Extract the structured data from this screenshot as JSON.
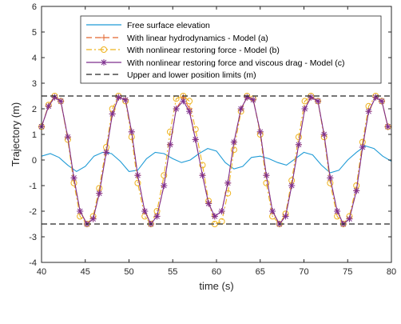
{
  "chart_data": {
    "type": "line",
    "title": "",
    "xlabel": "time (s)",
    "ylabel": "Trajectory (m)",
    "xlim": [
      40,
      80
    ],
    "ylim": [
      -4,
      6
    ],
    "xticks": [
      40,
      45,
      50,
      55,
      60,
      65,
      70,
      75,
      80
    ],
    "yticks": [
      -4,
      -3,
      -2,
      -1,
      0,
      1,
      2,
      3,
      4,
      5,
      6
    ],
    "grid": false,
    "legend_position": "top",
    "series": [
      {
        "name": "Free surface elevation",
        "style": "solid",
        "marker": "none",
        "color": "#1f9bd6",
        "x": [
          40,
          41,
          42,
          43,
          44,
          45,
          46,
          47,
          48,
          49,
          50,
          51,
          52,
          53,
          54,
          55,
          56,
          57,
          58,
          59,
          60,
          61,
          62,
          63,
          64,
          65,
          66,
          67,
          68,
          69,
          70,
          71,
          72,
          73,
          74,
          75,
          76,
          77,
          78,
          79,
          80
        ],
        "y": [
          0.15,
          0.25,
          0.1,
          -0.2,
          -0.45,
          -0.25,
          0.15,
          0.3,
          0.25,
          -0.05,
          -0.45,
          -0.4,
          0.05,
          0.3,
          0.25,
          0.05,
          -0.1,
          0.0,
          0.25,
          0.45,
          0.35,
          -0.1,
          -0.35,
          -0.25,
          0.1,
          0.15,
          0.05,
          -0.1,
          -0.2,
          0.05,
          0.3,
          0.2,
          -0.2,
          -0.5,
          -0.4,
          0.0,
          0.3,
          0.55,
          0.45,
          0.15,
          -0.05
        ]
      },
      {
        "name": "With linear hydrodynamics - Model (a)",
        "style": "dashed",
        "marker": "plus",
        "color": "#e3662e",
        "x": [
          40,
          40.8,
          41.5,
          42.2,
          43,
          43.7,
          44.4,
          45.2,
          45.9,
          46.6,
          47.4,
          48.1,
          48.8,
          49.6,
          50.3,
          51,
          51.8,
          52.5,
          53.2,
          54,
          54.7,
          55.4,
          56.2,
          56.9,
          57.6,
          58.4,
          59.1,
          59.8,
          60.6,
          61.3,
          62,
          62.8,
          63.5,
          64.2,
          65,
          65.7,
          66.4,
          67.2,
          67.9,
          68.6,
          69.4,
          70.1,
          70.8,
          71.6,
          72.3,
          73,
          73.8,
          74.5,
          75.2,
          76,
          76.7,
          77.4,
          78.2,
          78.9,
          79.6
        ],
        "y": [
          1.3,
          2.1,
          2.45,
          2.3,
          0.9,
          -0.7,
          -2.0,
          -2.5,
          -2.3,
          -1.3,
          0.3,
          1.8,
          2.45,
          2.35,
          1.1,
          -0.6,
          -2.0,
          -2.5,
          -2.2,
          -1.0,
          0.6,
          2.0,
          2.45,
          2.0,
          0.8,
          -0.6,
          -1.7,
          -2.2,
          -2.0,
          -0.9,
          0.7,
          2.0,
          2.45,
          2.35,
          1.1,
          -0.6,
          -2.0,
          -2.5,
          -2.2,
          -1.0,
          0.6,
          2.0,
          2.45,
          2.3,
          1.0,
          -0.7,
          -2.0,
          -2.5,
          -2.3,
          -1.2,
          0.5,
          1.9,
          2.45,
          2.3,
          1.3
        ]
      },
      {
        "name": "With nonlinear restoring force - Model (b)",
        "style": "dashdot",
        "marker": "circle",
        "color": "#eeb31f",
        "x": [
          40,
          40.8,
          41.5,
          42.2,
          43,
          43.7,
          44.4,
          45.2,
          45.9,
          46.6,
          47.4,
          48.1,
          48.8,
          49.6,
          50.3,
          51,
          51.8,
          52.5,
          53.2,
          54,
          54.7,
          55.4,
          56.2,
          56.9,
          57.6,
          58.4,
          59.1,
          59.8,
          60.6,
          61.3,
          62,
          62.8,
          63.5,
          64.2,
          65,
          65.7,
          66.4,
          67.2,
          67.9,
          68.6,
          69.4,
          70.1,
          70.8,
          71.6,
          72.3,
          73,
          73.8,
          74.5,
          75.2,
          76,
          76.7,
          77.4,
          78.2,
          78.9,
          79.6
        ],
        "y": [
          1.3,
          2.15,
          2.5,
          2.3,
          0.8,
          -0.9,
          -2.2,
          -2.5,
          -2.2,
          -1.1,
          0.5,
          2.0,
          2.5,
          2.3,
          0.9,
          -0.9,
          -2.2,
          -2.5,
          -2.0,
          -0.6,
          1.1,
          2.4,
          2.5,
          2.3,
          1.2,
          -0.2,
          -1.6,
          -2.5,
          -2.4,
          -1.3,
          0.4,
          1.9,
          2.5,
          2.4,
          1.0,
          -0.9,
          -2.2,
          -2.5,
          -2.1,
          -0.8,
          0.9,
          2.3,
          2.5,
          2.3,
          0.9,
          -0.9,
          -2.2,
          -2.5,
          -2.2,
          -1.0,
          0.7,
          2.1,
          2.5,
          2.3,
          1.3
        ]
      },
      {
        "name": "With nonlinear restoring force and viscous drag - Model (c)",
        "style": "solid",
        "marker": "asterisk",
        "color": "#7e2f8e",
        "x": [
          40,
          40.8,
          41.5,
          42.2,
          43,
          43.7,
          44.4,
          45.2,
          45.9,
          46.6,
          47.4,
          48.1,
          48.8,
          49.6,
          50.3,
          51,
          51.8,
          52.5,
          53.2,
          54,
          54.7,
          55.4,
          56.2,
          56.9,
          57.6,
          58.4,
          59.1,
          59.8,
          60.6,
          61.3,
          62,
          62.8,
          63.5,
          64.2,
          65,
          65.7,
          66.4,
          67.2,
          67.9,
          68.6,
          69.4,
          70.1,
          70.8,
          71.6,
          72.3,
          73,
          73.8,
          74.5,
          75.2,
          76,
          76.7,
          77.4,
          78.2,
          78.9,
          79.6
        ],
        "y": [
          1.3,
          2.1,
          2.45,
          2.3,
          0.9,
          -0.7,
          -2.0,
          -2.5,
          -2.3,
          -1.3,
          0.3,
          1.8,
          2.45,
          2.35,
          1.1,
          -0.6,
          -2.0,
          -2.5,
          -2.2,
          -1.0,
          0.6,
          2.0,
          2.3,
          1.9,
          0.8,
          -0.6,
          -1.7,
          -2.2,
          -2.0,
          -0.9,
          0.7,
          2.0,
          2.45,
          2.35,
          1.1,
          -0.6,
          -2.0,
          -2.5,
          -2.2,
          -1.0,
          0.6,
          2.0,
          2.45,
          2.3,
          1.0,
          -0.7,
          -2.0,
          -2.5,
          -2.3,
          -1.2,
          0.5,
          1.9,
          2.45,
          2.3,
          1.3
        ]
      },
      {
        "name": "Upper and lower position limits (m)",
        "style": "dashed",
        "marker": "none",
        "color": "#262626",
        "x": [
          40,
          80
        ],
        "y_values": [
          2.5,
          -2.5
        ]
      }
    ]
  }
}
